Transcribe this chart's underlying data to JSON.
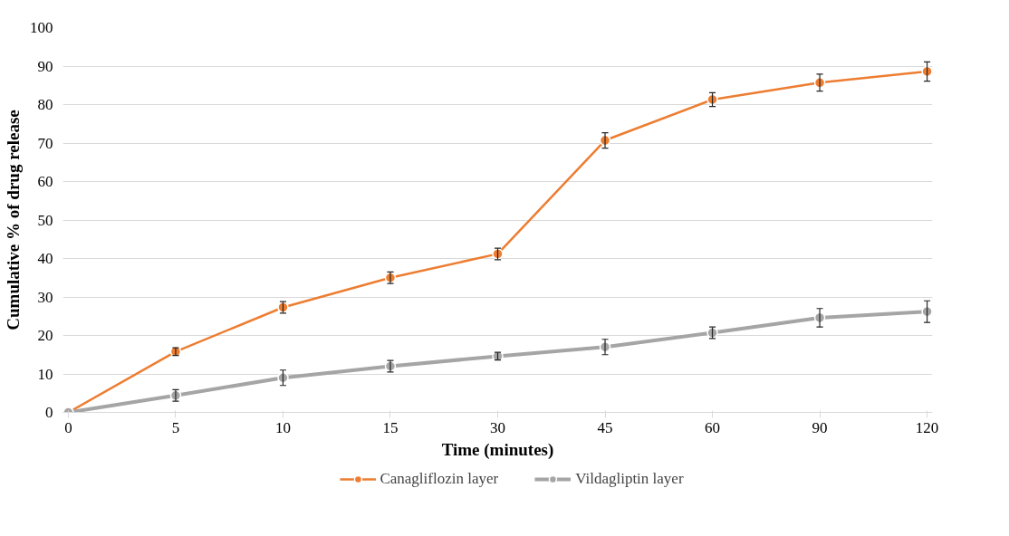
{
  "chart_data": {
    "type": "line",
    "xlabel": "Time (minutes)",
    "ylabel": "Cumulative % of drug release",
    "categories": [
      "0",
      "5",
      "10",
      "15",
      "30",
      "45",
      "60",
      "90",
      "120"
    ],
    "ylim": [
      0,
      100
    ],
    "yticks": [
      0,
      10,
      20,
      30,
      40,
      50,
      60,
      70,
      80,
      90,
      100
    ],
    "grid": "y",
    "legend": "bottom",
    "marker": "circle",
    "line_style": "solid",
    "series": [
      {
        "name": "Canagliflozin layer",
        "color": "#ed7d31",
        "values": [
          0,
          15.8,
          27.3,
          35,
          41.2,
          70.7,
          81.3,
          85.7,
          88.6
        ],
        "errors": [
          null,
          1,
          1.5,
          1.5,
          1.5,
          2,
          1.8,
          2.2,
          2.5
        ]
      },
      {
        "name": "Vildagliptin layer",
        "color": "#a5a5a5",
        "values": [
          0,
          4.4,
          9,
          12,
          14.6,
          17,
          20.7,
          24.6,
          26.2
        ],
        "errors": [
          null,
          1.5,
          2,
          1.5,
          1,
          2,
          1.5,
          2.4,
          2.8
        ]
      }
    ]
  }
}
